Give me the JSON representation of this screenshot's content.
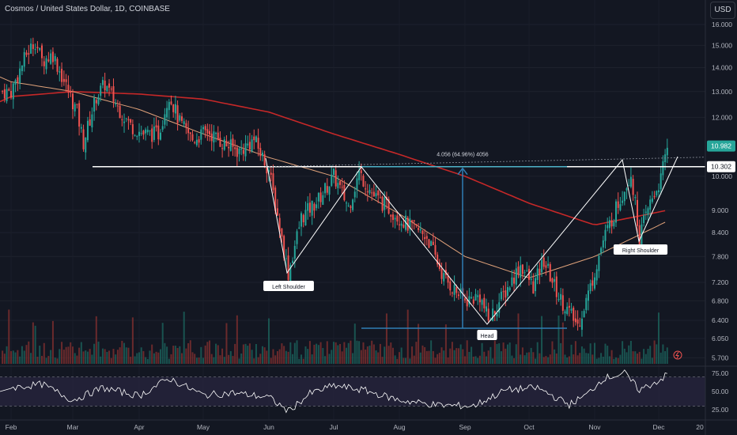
{
  "header": {
    "symbol_title": "Cosmos / United States Dollar, 1D, COINBASE",
    "currency_button": "USD"
  },
  "colors": {
    "background": "#131722",
    "up_candle": "#26a69a",
    "down_candle": "#ef5350",
    "ma200": "#c62828",
    "ma50": "#e0a27a",
    "pattern_line": "#ffffff",
    "measure": "#2f7fb5",
    "rsi_line": "#ffffff",
    "rsi_band": "#2a2640",
    "last_price_tag": "#26a69a",
    "level_tag": "#ffffff"
  },
  "chart_data": {
    "type": "candlestick",
    "x_ticks": [
      "Feb",
      "Mar",
      "Apr",
      "May",
      "Jun",
      "Jul",
      "Aug",
      "Sep",
      "Oct",
      "Nov",
      "Dec",
      "20"
    ],
    "y_ticks": [
      "16.000",
      "15.000",
      "14.000",
      "13.000",
      "12.000",
      "10.000",
      "9.000",
      "8.400",
      "7.800",
      "7.200",
      "6.800",
      "6.400",
      "6.050",
      "5.700"
    ],
    "y_scale": "log",
    "ylim": [
      5.7,
      16.4
    ],
    "last_price": "10.982",
    "neckline_price": "10.302",
    "measure_label": "4.056 (64.96%) 4056",
    "annotations": [
      "Left Shoulder",
      "Head",
      "Right Shoulder"
    ],
    "price_path": [
      [
        "Feb",
        13.0
      ],
      [
        "Feb 8",
        14.6
      ],
      [
        "Feb 12",
        15.2
      ],
      [
        "Feb 15",
        14.3
      ],
      [
        "Feb 20",
        14.6
      ],
      [
        "Feb 26",
        13.2
      ],
      [
        "Mar 3",
        12.2
      ],
      [
        "Mar 6",
        11.1
      ],
      [
        "Mar 12",
        12.8
      ],
      [
        "Mar 16",
        13.3
      ],
      [
        "Mar 22",
        12.4
      ],
      [
        "Mar 28",
        11.7
      ],
      [
        "Apr 3",
        11.4
      ],
      [
        "Apr 10",
        11.4
      ],
      [
        "Apr 15",
        12.9
      ],
      [
        "Apr 20",
        11.8
      ],
      [
        "Apr 26",
        11.2
      ],
      [
        "May 3",
        11.5
      ],
      [
        "May 10",
        11.1
      ],
      [
        "May 18",
        10.8
      ],
      [
        "May 25",
        11.2
      ],
      [
        "Jun 1",
        10.2
      ],
      [
        "Jun 10",
        7.4
      ],
      [
        "Jun 16",
        8.8
      ],
      [
        "Jun 24",
        9.3
      ],
      [
        "Jul 1",
        10.0
      ],
      [
        "Jul 8",
        9.1
      ],
      [
        "Jul 13",
        10.1
      ],
      [
        "Jul 20",
        9.4
      ],
      [
        "Jul 28",
        9.0
      ],
      [
        "Aug 5",
        8.6
      ],
      [
        "Aug 14",
        8.3
      ],
      [
        "Aug 22",
        7.3
      ],
      [
        "Sep 1",
        6.8
      ],
      [
        "Sep 8",
        6.9
      ],
      [
        "Sep 12",
        6.4
      ],
      [
        "Sep 20",
        7.0
      ],
      [
        "Sep 27",
        7.6
      ],
      [
        "Oct 3",
        7.1
      ],
      [
        "Oct 8",
        7.7
      ],
      [
        "Oct 15",
        6.9
      ],
      [
        "Oct 24",
        6.3
      ],
      [
        "Oct 30",
        7.1
      ],
      [
        "Nov 5",
        8.2
      ],
      [
        "Nov 12",
        9.2
      ],
      [
        "Nov 18",
        10.1
      ],
      [
        "Nov 22",
        8.3
      ],
      [
        "Nov 27",
        9.2
      ],
      [
        "Dec 2",
        9.9
      ],
      [
        "Dec 5",
        10.98
      ]
    ],
    "ma_slow": [
      [
        "Feb",
        12.8
      ],
      [
        "Mar",
        13.0
      ],
      [
        "Apr",
        12.9
      ],
      [
        "May",
        12.7
      ],
      [
        "Jun",
        12.2
      ],
      [
        "Jul",
        11.4
      ],
      [
        "Aug",
        10.7
      ],
      [
        "Sep",
        10.0
      ],
      [
        "Oct",
        9.2
      ],
      [
        "Nov",
        8.6
      ],
      [
        "Dec 5",
        9.0
      ]
    ],
    "ma_fast": [
      [
        "Feb",
        13.4
      ],
      [
        "Mar",
        13.0
      ],
      [
        "Apr",
        12.3
      ],
      [
        "May",
        11.4
      ],
      [
        "Jun",
        10.6
      ],
      [
        "Jul",
        10.0
      ],
      [
        "Aug",
        8.9
      ],
      [
        "Sep",
        7.8
      ],
      [
        "Oct",
        7.3
      ],
      [
        "Nov",
        7.8
      ],
      [
        "Dec 5",
        8.7
      ]
    ],
    "rsi": {
      "y_ticks": [
        "75.00",
        "50.00",
        "25.00"
      ],
      "levels": [
        70,
        30
      ],
      "path": [
        [
          "Feb",
          55
        ],
        [
          "Feb 15",
          60
        ],
        [
          "Mar 1",
          38
        ],
        [
          "Mar 15",
          55
        ],
        [
          "Apr 1",
          44
        ],
        [
          "Apr 15",
          68
        ],
        [
          "May 1",
          45
        ],
        [
          "May 15",
          48
        ],
        [
          "Jun 1",
          42
        ],
        [
          "Jun 10",
          23
        ],
        [
          "Jun 20",
          47
        ],
        [
          "Jul 1",
          58
        ],
        [
          "Jul 15",
          52
        ],
        [
          "Aug 1",
          38
        ],
        [
          "Aug 20",
          31
        ],
        [
          "Sep 5",
          30
        ],
        [
          "Sep 20",
          52
        ],
        [
          "Oct 5",
          55
        ],
        [
          "Oct 20",
          32
        ],
        [
          "Oct 28",
          45
        ],
        [
          "Nov 5",
          68
        ],
        [
          "Nov 15",
          75
        ],
        [
          "Nov 22",
          52
        ],
        [
          "Dec 1",
          65
        ],
        [
          "Dec 5",
          73
        ]
      ]
    }
  }
}
